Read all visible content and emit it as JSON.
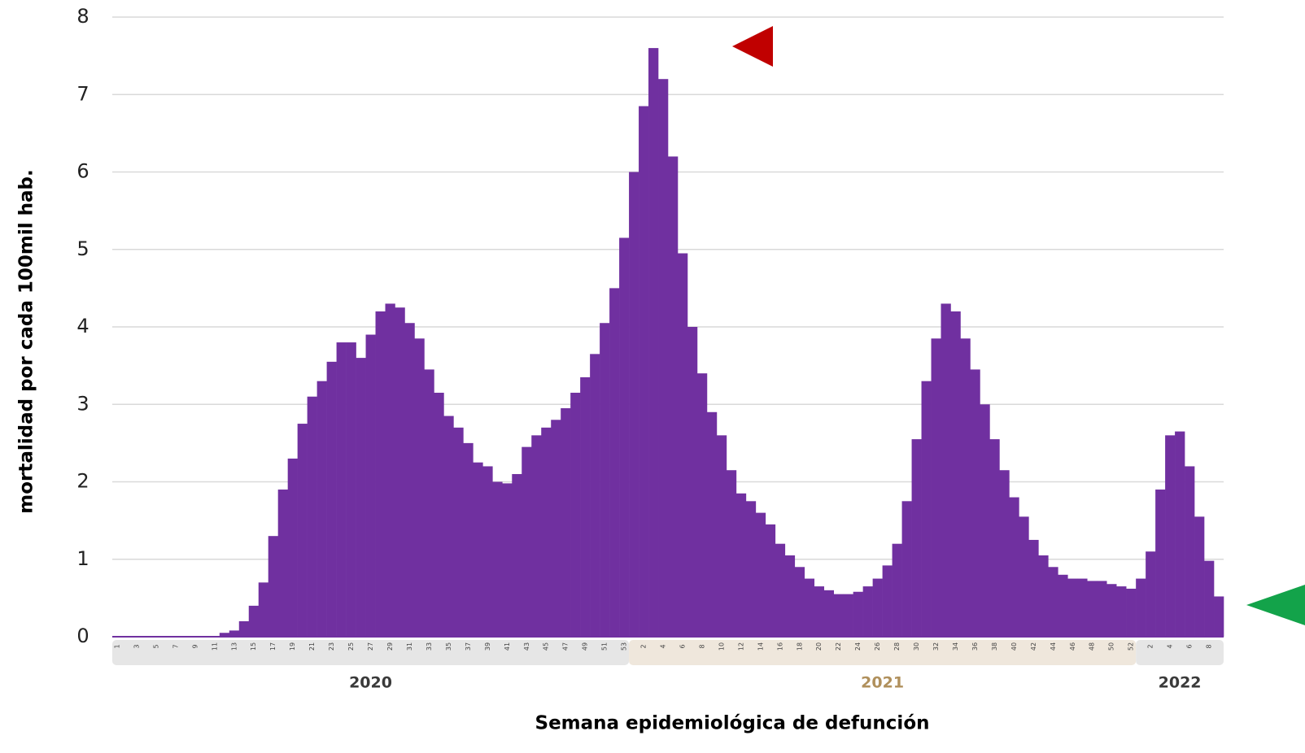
{
  "chart_data": {
    "type": "bar",
    "y_label": "mortalidad por cada 100mil hab.",
    "x_label": "Semana epidemiológica de defunción",
    "color": "#7030a0",
    "grid": true,
    "ylim": [
      0,
      8
    ],
    "yticks": [
      0,
      1,
      2,
      3,
      4,
      5,
      6,
      7,
      8
    ],
    "years": [
      "2020",
      "2021",
      "2022"
    ],
    "year_band_colors": [
      "#e6e6e6",
      "#efe7dc",
      "#e6e6e6"
    ],
    "year_label_colors": [
      "#3a3a3a",
      "#b0905c",
      "#3a3a3a"
    ],
    "categories": [
      "1",
      null,
      "3",
      null,
      "5",
      null,
      "7",
      null,
      "9",
      null,
      "11",
      null,
      "13",
      null,
      "15",
      null,
      "17",
      null,
      "19",
      null,
      "21",
      null,
      "23",
      null,
      "25",
      null,
      "27",
      null,
      "29",
      null,
      "31",
      null,
      "33",
      null,
      "35",
      null,
      "37",
      null,
      "39",
      null,
      "41",
      null,
      "43",
      null,
      "45",
      null,
      "47",
      null,
      "49",
      null,
      "51",
      null,
      "53",
      null,
      "2",
      null,
      "4",
      null,
      "6",
      null,
      "8",
      null,
      "10",
      null,
      "12",
      null,
      "14",
      null,
      "16",
      null,
      "18",
      null,
      "20",
      null,
      "22",
      null,
      "24",
      null,
      "26",
      null,
      "28",
      null,
      "30",
      null,
      "32",
      null,
      "34",
      null,
      "36",
      null,
      "38",
      null,
      "40",
      null,
      "42",
      null,
      "44",
      null,
      "46",
      null,
      "48",
      null,
      "50",
      null,
      "52",
      null,
      "2",
      null,
      "4",
      null,
      "6",
      null,
      "8",
      null
    ],
    "values": [
      0,
      0,
      0,
      0,
      0,
      0,
      0,
      0,
      0,
      0,
      0,
      0.05,
      0.08,
      0.2,
      0.4,
      0.7,
      1.3,
      1.9,
      2.3,
      2.75,
      3.1,
      3.3,
      3.55,
      3.8,
      3.8,
      3.6,
      3.9,
      4.2,
      4.3,
      4.25,
      4.05,
      3.85,
      3.45,
      3.15,
      2.85,
      2.7,
      2.5,
      2.25,
      2.2,
      2.0,
      1.98,
      2.1,
      2.45,
      2.6,
      2.7,
      2.8,
      2.95,
      3.15,
      3.35,
      3.65,
      4.05,
      4.5,
      5.15,
      6.0,
      6.85,
      7.6,
      7.2,
      6.2,
      4.95,
      4.0,
      3.4,
      2.9,
      2.6,
      2.15,
      1.85,
      1.75,
      1.6,
      1.45,
      1.2,
      1.05,
      0.9,
      0.75,
      0.65,
      0.6,
      0.55,
      0.55,
      0.58,
      0.65,
      0.75,
      0.92,
      1.2,
      1.75,
      2.55,
      3.3,
      3.85,
      4.3,
      4.2,
      3.85,
      3.45,
      3.0,
      2.55,
      2.15,
      1.8,
      1.55,
      1.25,
      1.05,
      0.9,
      0.8,
      0.75,
      0.75,
      0.72,
      0.72,
      0.68,
      0.65,
      0.62,
      0.75,
      1.1,
      1.9,
      2.6,
      2.65,
      2.2,
      1.55,
      0.98,
      0.52
    ]
  }
}
